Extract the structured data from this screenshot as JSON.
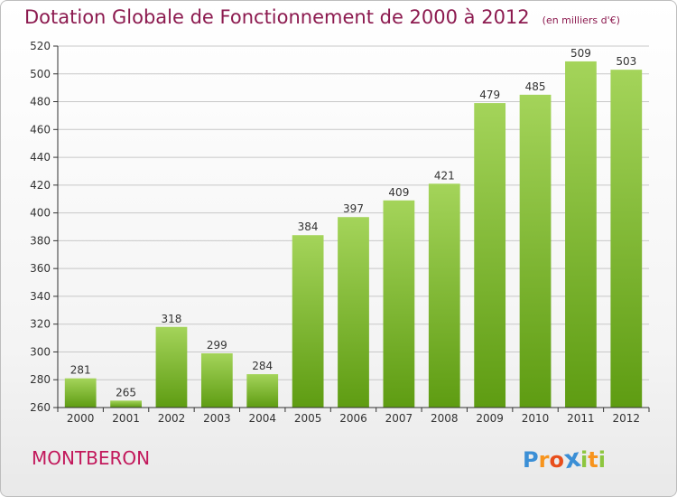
{
  "header": {
    "title": "Dotation Globale de Fonctionnement de 2000 à 2012",
    "subtitle": "(en milliers d'€)"
  },
  "footer": {
    "city": "MONTBERON",
    "brand_letters": [
      "P",
      "r",
      "o",
      "x",
      "i",
      "t",
      "i"
    ],
    "brand_colors": [
      "#3b8fd6",
      "#f7941d",
      "#e84e1b",
      "#3b8fd6",
      "#8dc63f",
      "#f7941d",
      "#8dc63f"
    ]
  },
  "chart_data": {
    "type": "bar",
    "title": "Dotation Globale de Fonctionnement de 2000 à 2012",
    "subtitle": "(en milliers d'€)",
    "categories": [
      "2000",
      "2001",
      "2002",
      "2003",
      "2004",
      "2005",
      "2006",
      "2007",
      "2008",
      "2009",
      "2010",
      "2011",
      "2012"
    ],
    "values": [
      281,
      265,
      318,
      299,
      284,
      384,
      397,
      409,
      421,
      479,
      485,
      509,
      503
    ],
    "ylim": [
      260,
      520
    ],
    "yticks": [
      260,
      280,
      300,
      320,
      340,
      360,
      380,
      400,
      420,
      440,
      460,
      480,
      500,
      520
    ],
    "grid": true,
    "colors": {
      "bar_top": "#a4d45a",
      "bar_bottom": "#5e9c12",
      "grid": "#c8c8c8",
      "axis": "#333333"
    }
  }
}
